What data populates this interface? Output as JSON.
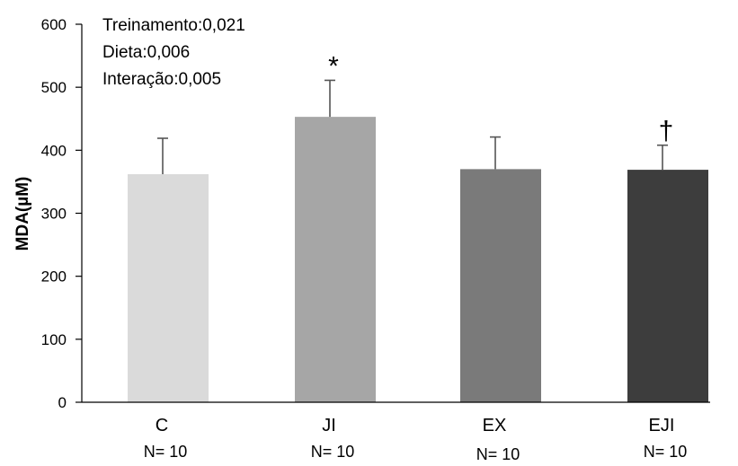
{
  "chart_data": {
    "type": "bar",
    "categories": [
      "C",
      "JI",
      "EX",
      "EJI"
    ],
    "values": [
      362,
      453,
      370,
      369
    ],
    "error_upper": [
      419,
      511,
      421,
      408
    ],
    "colors": [
      "#dadada",
      "#a6a6a6",
      "#7a7a7a",
      "#3d3d3d"
    ],
    "sample_sizes": [
      "N= 10",
      "N= 10",
      "N= 10",
      "N= 10"
    ],
    "significance_markers": [
      "",
      "*",
      "",
      "†"
    ],
    "ylabel": "MDA(µM)",
    "ylim": [
      0,
      600
    ],
    "yticks": [
      0,
      100,
      200,
      300,
      400,
      500,
      600
    ],
    "annotations": [
      "Treinamento:0,021",
      "Dieta:0,006",
      "Interação:0,005"
    ],
    "grid": false
  }
}
